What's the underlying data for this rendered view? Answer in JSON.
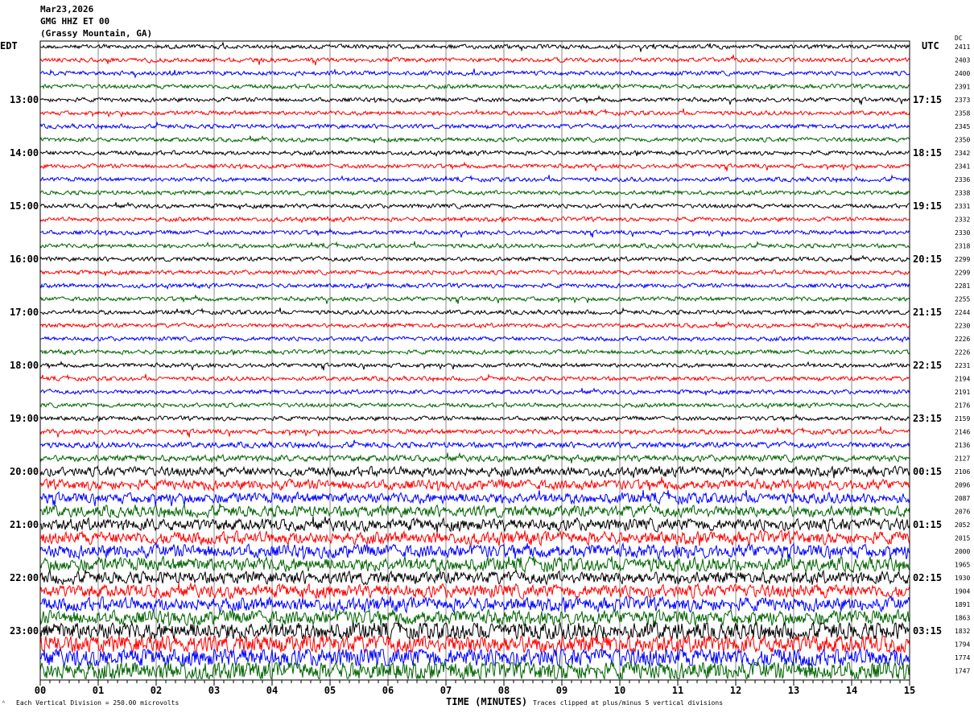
{
  "header": {
    "date": "Mar23,2026",
    "station": "GMG HHZ ET 00",
    "location": "(Grassy Mountain, GA)"
  },
  "left_timezone": "EDT",
  "right_timezone": "UTC",
  "dc_label": "DC",
  "footer": {
    "scale_note": "Each Vertical Division =  250.00 microvolts",
    "xlabel": "TIME (MINUTES)",
    "clip_note": "Traces clipped at plus/minus 5 vertical divisions"
  },
  "chart_data": {
    "type": "line",
    "subtype": "helicorder",
    "xlabel": "TIME (MINUTES)",
    "xlim": [
      0,
      15
    ],
    "x_ticks": [
      "00",
      "01",
      "02",
      "03",
      "04",
      "05",
      "06",
      "07",
      "08",
      "09",
      "10",
      "11",
      "12",
      "13",
      "14",
      "15"
    ],
    "trace_colors": [
      "#000000",
      "#ff0000",
      "#0000ff",
      "#006400"
    ],
    "trace_count": 48,
    "left_time_labels": [
      "",
      "",
      "",
      "",
      "13:00",
      "",
      "",
      "",
      "14:00",
      "",
      "",
      "",
      "15:00",
      "",
      "",
      "",
      "16:00",
      "",
      "",
      "",
      "17:00",
      "",
      "",
      "",
      "18:00",
      "",
      "",
      "",
      "19:00",
      "",
      "",
      "",
      "20:00",
      "",
      "",
      "",
      "21:00",
      "",
      "",
      "",
      "22:00",
      "",
      "",
      "",
      "23:00",
      "",
      "",
      ""
    ],
    "right_time_labels": [
      "",
      "",
      "",
      "",
      "17:15",
      "",
      "",
      "",
      "18:15",
      "",
      "",
      "",
      "19:15",
      "",
      "",
      "",
      "20:15",
      "",
      "",
      "",
      "21:15",
      "",
      "",
      "",
      "22:15",
      "",
      "",
      "",
      "23:15",
      "",
      "",
      "",
      "00:15",
      "",
      "",
      "",
      "01:15",
      "",
      "",
      "",
      "02:15",
      "",
      "",
      "",
      "03:15",
      "",
      "",
      ""
    ],
    "dc_offsets": [
      "2411",
      "2403",
      "2400",
      "2391",
      "2373",
      "2358",
      "2345",
      "2350",
      "2342",
      "2341",
      "2336",
      "2338",
      "2331",
      "2332",
      "2330",
      "2318",
      "2299",
      "2299",
      "2281",
      "2255",
      "2244",
      "2230",
      "2226",
      "2226",
      "2231",
      "2194",
      "2191",
      "2176",
      "2159",
      "2146",
      "2136",
      "2127",
      "2106",
      "2096",
      "2087",
      "2076",
      "2052",
      "2015",
      "2000",
      "1965",
      "1930",
      "1904",
      "1891",
      "1863",
      "1832",
      "1794",
      "1774",
      "1747"
    ],
    "grid": true
  }
}
